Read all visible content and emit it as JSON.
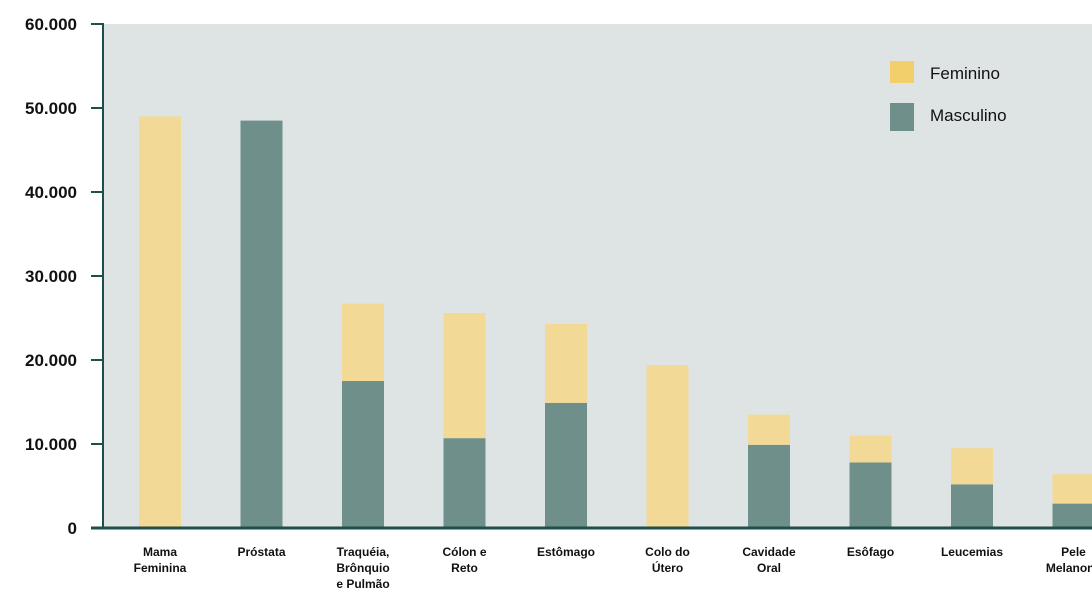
{
  "chart_data": {
    "type": "bar",
    "stacked": true,
    "title": "",
    "xlabel": "",
    "ylabel": "",
    "ylim": [
      0,
      60000
    ],
    "yticks": [
      0,
      10000,
      20000,
      30000,
      40000,
      50000,
      60000
    ],
    "ytick_labels": [
      "0",
      "10.000",
      "20.000",
      "30.000",
      "40.000",
      "50.000",
      "60.000"
    ],
    "grid": false,
    "legend_position": "top-right",
    "categories": [
      "Mama Feminina",
      "Próstata",
      "Traquéia, Brônquio e Pulmão",
      "Cólon e Reto",
      "Estômago",
      "Colo do Útero",
      "Cavidade Oral",
      "Esôfago",
      "Leucemias",
      "Pele Melanona"
    ],
    "category_label_lines": [
      [
        "Mama",
        "Feminina"
      ],
      [
        "Próstata"
      ],
      [
        "Traquéia,",
        "Brônquio",
        "e Pulmão"
      ],
      [
        "Cólon e",
        "Reto"
      ],
      [
        "Estômago"
      ],
      [
        "Colo do",
        "Útero"
      ],
      [
        "Cavidade",
        "Oral"
      ],
      [
        "Esôfago"
      ],
      [
        "Leucemias"
      ],
      [
        "Pele",
        "Melanona"
      ]
    ],
    "series": [
      {
        "name": "Masculino",
        "color": "#6f8f8b",
        "values": [
          0,
          48500,
          17500,
          10700,
          14900,
          0,
          9900,
          7800,
          5200,
          2900
        ]
      },
      {
        "name": "Feminino",
        "color": "#f2d995",
        "values": [
          49000,
          0,
          9200,
          14900,
          9400,
          19400,
          3600,
          3200,
          4300,
          3500
        ]
      }
    ],
    "legend_order": [
      "Feminino",
      "Masculino"
    ],
    "colors": {
      "plot_background": "#dde4e3",
      "axis": "#1f4f4a",
      "legend_feminino": "#f2cf6a",
      "legend_masculino": "#6f8f8b"
    }
  }
}
